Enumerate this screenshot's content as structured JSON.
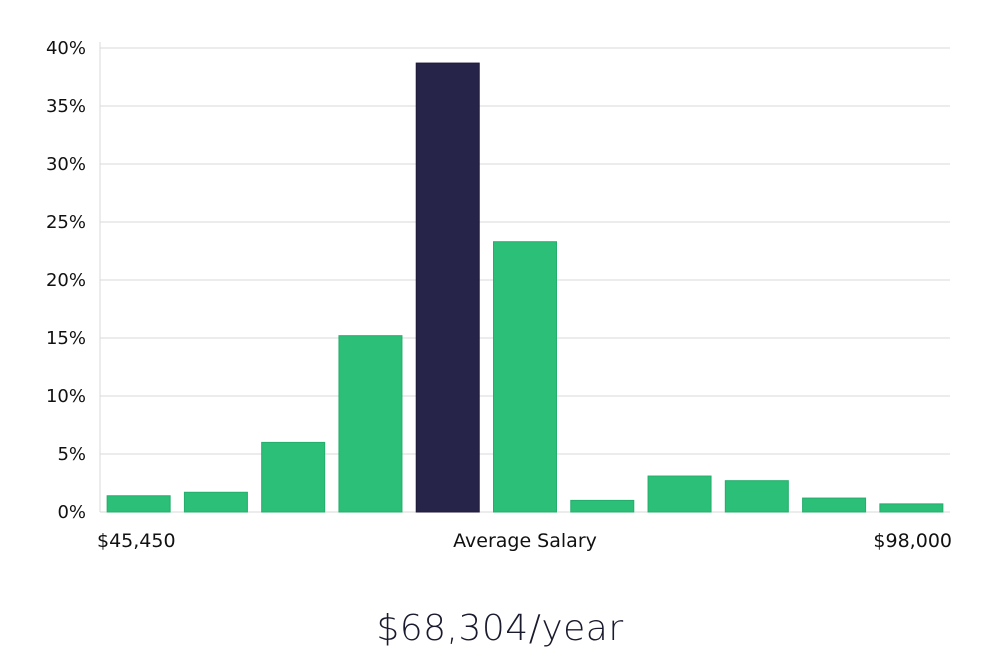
{
  "chart_data": {
    "type": "bar",
    "title": "",
    "xlabel": "",
    "ylabel": "",
    "x_tick_labels": {
      "left": "$45,450",
      "center": "Average Salary",
      "right": "$98,000"
    },
    "y_tick_labels": [
      "0%",
      "5%",
      "10%",
      "15%",
      "20%",
      "25%",
      "30%",
      "35%",
      "40%"
    ],
    "ylim": [
      0,
      40
    ],
    "grid": true,
    "legend": "none",
    "values": [
      1.4,
      1.7,
      6.0,
      15.2,
      38.7,
      23.3,
      1.0,
      3.1,
      2.7,
      1.2,
      0.7
    ],
    "highlight_index": 4
  },
  "summary": {
    "average_salary": "$68,304/year"
  },
  "colors": {
    "bar": "#2bbf78",
    "highlight": "#27244a",
    "grid": "#d9d9d9"
  }
}
